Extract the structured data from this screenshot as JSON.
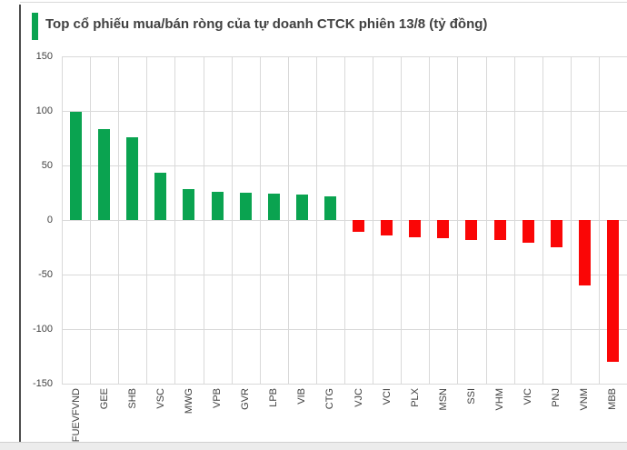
{
  "page": {
    "title": "Top cổ phiếu mua/bán ròng của tự doanh CTCK phiên 13/8 (tỷ đồng)"
  },
  "colors": {
    "positive": "#0aa350",
    "negative": "#fa0606",
    "accent": "#0aa350",
    "title_text": "#404040",
    "gridline": "#d9d9d9",
    "axis_text": "#404040"
  },
  "chart_data": {
    "type": "bar",
    "title": "Top cổ phiếu mua/bán ròng của tự doanh CTCK phiên 13/8 (tỷ đồng)",
    "categories": [
      "FUEVFVND",
      "GEE",
      "SHB",
      "VSC",
      "MWG",
      "VPB",
      "GVR",
      "LPB",
      "VIB",
      "CTG",
      "VJC",
      "VCI",
      "PLX",
      "MSN",
      "SSI",
      "VHM",
      "VIC",
      "PNJ",
      "VNM",
      "MBB"
    ],
    "values": [
      99,
      83,
      76,
      43,
      28,
      26,
      25,
      24,
      23,
      22,
      -11,
      -14,
      -16,
      -17,
      -18,
      -18,
      -21,
      -25,
      -60,
      -130
    ],
    "series_unit": "tỷ đồng",
    "xlabel": "",
    "ylabel": "",
    "ylim": [
      -150,
      150
    ],
    "yticks": [
      150,
      100,
      50,
      0,
      -50,
      -100,
      -150
    ],
    "grid": "both",
    "legend": "none",
    "positive_color": "#0aa350",
    "negative_color": "#fa0606"
  }
}
